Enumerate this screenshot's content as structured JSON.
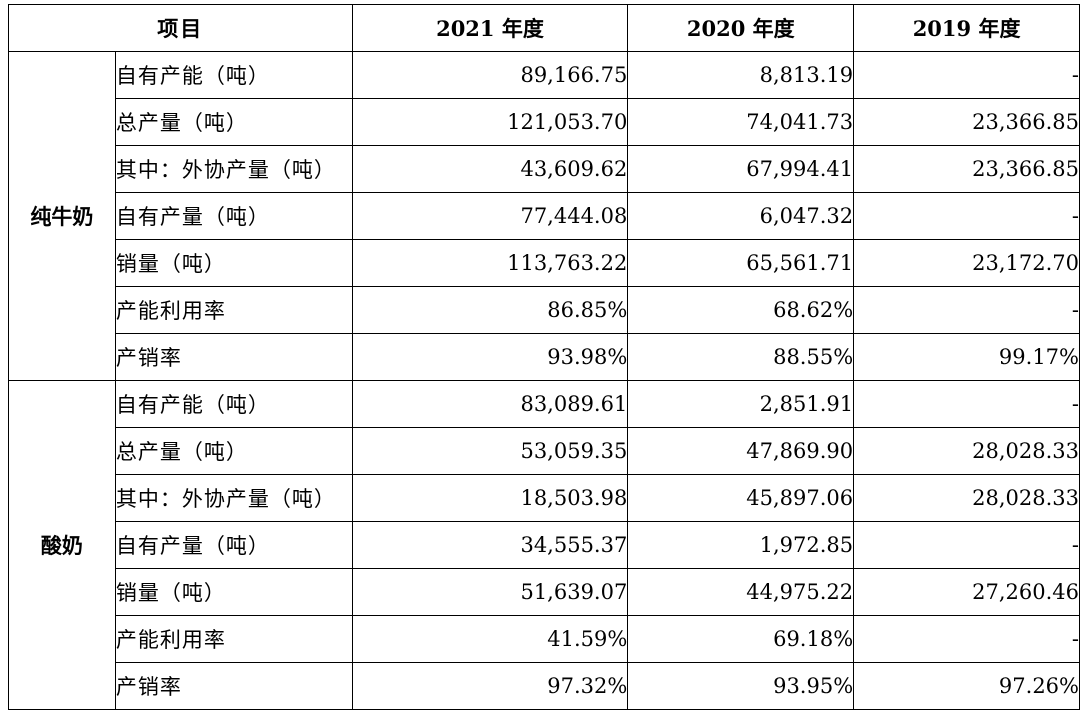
{
  "header": {
    "item": "项目",
    "y2021": "2021 年度",
    "y2020": "2020 年度",
    "y2019": "2019 年度"
  },
  "groups": [
    {
      "category": "纯牛奶",
      "rows": [
        {
          "label": "自有产能（吨）",
          "v2021": "89,166.75",
          "v2020": "8,813.19",
          "v2019": "-"
        },
        {
          "label": "总产量（吨）",
          "v2021": "121,053.70",
          "v2020": "74,041.73",
          "v2019": "23,366.85"
        },
        {
          "label": "其中：外协产量（吨）",
          "v2021": "43,609.62",
          "v2020": "67,994.41",
          "v2019": "23,366.85"
        },
        {
          "label": "自有产量（吨）",
          "v2021": "77,444.08",
          "v2020": "6,047.32",
          "v2019": "-"
        },
        {
          "label": "销量（吨）",
          "v2021": "113,763.22",
          "v2020": "65,561.71",
          "v2019": "23,172.70"
        },
        {
          "label": "产能利用率",
          "v2021": "86.85%",
          "v2020": "68.62%",
          "v2019": "-"
        },
        {
          "label": "产销率",
          "v2021": "93.98%",
          "v2020": "88.55%",
          "v2019": "99.17%"
        }
      ]
    },
    {
      "category": "酸奶",
      "rows": [
        {
          "label": "自有产能（吨）",
          "v2021": "83,089.61",
          "v2020": "2,851.91",
          "v2019": "-"
        },
        {
          "label": "总产量（吨）",
          "v2021": "53,059.35",
          "v2020": "47,869.90",
          "v2019": "28,028.33"
        },
        {
          "label": "其中：外协产量（吨）",
          "v2021": "18,503.98",
          "v2020": "45,897.06",
          "v2019": "28,028.33"
        },
        {
          "label": "自有产量（吨）",
          "v2021": "34,555.37",
          "v2020": "1,972.85",
          "v2019": "-"
        },
        {
          "label": "销量（吨）",
          "v2021": "51,639.07",
          "v2020": "44,975.22",
          "v2019": "27,260.46"
        },
        {
          "label": "产能利用率",
          "v2021": "41.59%",
          "v2020": "69.18%",
          "v2019": "-"
        },
        {
          "label": "产销率",
          "v2021": "97.32%",
          "v2020": "93.95%",
          "v2019": "97.26%"
        }
      ]
    }
  ]
}
